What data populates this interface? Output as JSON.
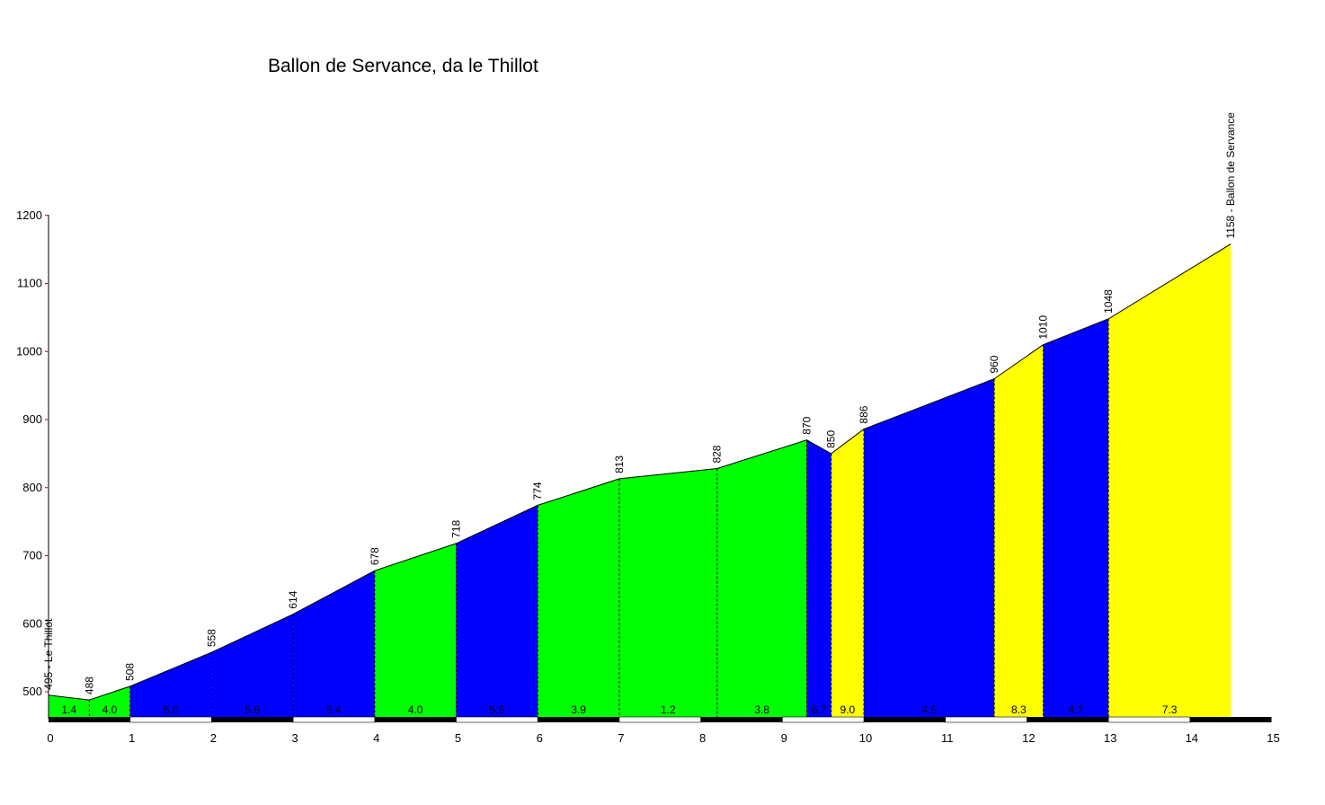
{
  "chart_data": {
    "type": "area",
    "title": "Ballon de Servance, da le Thillot",
    "xlabel": "",
    "ylabel": "",
    "xlim": [
      0,
      15
    ],
    "ylim": [
      460,
      1200
    ],
    "x_ticks": [
      "0",
      "1",
      "2",
      "3",
      "4",
      "5",
      "6",
      "7",
      "8",
      "9",
      "10",
      "11",
      "12",
      "13",
      "14",
      "15"
    ],
    "y_ticks": [
      "500",
      "600",
      "700",
      "800",
      "900",
      "1000",
      "1100",
      "1200"
    ],
    "grid": false,
    "colors": {
      "green": "#00ff00",
      "blue": "#0000ff",
      "yellow": "#ffff00",
      "outline": "#000000",
      "axis_tick": "#cc0000"
    },
    "profile": [
      {
        "x": 0,
        "y": 495,
        "label": "495 - Le Thillot"
      },
      {
        "x": 0.5,
        "y": 488,
        "label": "488"
      },
      {
        "x": 1,
        "y": 508,
        "label": "508"
      },
      {
        "x": 2,
        "y": 558,
        "label": "558"
      },
      {
        "x": 3,
        "y": 614,
        "label": "614"
      },
      {
        "x": 4,
        "y": 678,
        "label": "678"
      },
      {
        "x": 5,
        "y": 718,
        "label": "718"
      },
      {
        "x": 6,
        "y": 774,
        "label": "774"
      },
      {
        "x": 7,
        "y": 813,
        "label": "813"
      },
      {
        "x": 8.2,
        "y": 828,
        "label": "828"
      },
      {
        "x": 9.3,
        "y": 870,
        "label": "870"
      },
      {
        "x": 9.6,
        "y": 850,
        "label": "850"
      },
      {
        "x": 10,
        "y": 886,
        "label": "886"
      },
      {
        "x": 11.6,
        "y": 960,
        "label": "960"
      },
      {
        "x": 12.2,
        "y": 1010,
        "label": "1010"
      },
      {
        "x": 13,
        "y": 1048,
        "label": "1048"
      },
      {
        "x": 14.5,
        "y": 1158,
        "label": "1158 - Ballon de Servance"
      }
    ],
    "segments": [
      {
        "from": 0,
        "to": 0.5,
        "gradient": "1.4",
        "color": "green"
      },
      {
        "from": 0.5,
        "to": 1,
        "gradient": "4.0",
        "color": "green"
      },
      {
        "from": 1,
        "to": 2,
        "gradient": "5.0",
        "color": "blue"
      },
      {
        "from": 2,
        "to": 3,
        "gradient": "5.6",
        "color": "blue"
      },
      {
        "from": 3,
        "to": 4,
        "gradient": "6.4",
        "color": "blue"
      },
      {
        "from": 4,
        "to": 5,
        "gradient": "4.0",
        "color": "green"
      },
      {
        "from": 5,
        "to": 6,
        "gradient": "5.6",
        "color": "blue"
      },
      {
        "from": 6,
        "to": 7,
        "gradient": "3.9",
        "color": "green"
      },
      {
        "from": 7,
        "to": 8.2,
        "gradient": "1.2",
        "color": "green"
      },
      {
        "from": 8.2,
        "to": 9.3,
        "gradient": "3.8",
        "color": "green"
      },
      {
        "from": 9.3,
        "to": 9.6,
        "gradient": "6.7",
        "color": "blue"
      },
      {
        "from": 9.6,
        "to": 10,
        "gradient": "9.0",
        "color": "yellow"
      },
      {
        "from": 10,
        "to": 11.6,
        "gradient": "4.6",
        "color": "blue"
      },
      {
        "from": 11.6,
        "to": 12.2,
        "gradient": "8.3",
        "color": "yellow"
      },
      {
        "from": 12.2,
        "to": 13,
        "gradient": "4.7",
        "color": "blue"
      },
      {
        "from": 13,
        "to": 14.5,
        "gradient": "7.3",
        "color": "yellow"
      }
    ]
  }
}
